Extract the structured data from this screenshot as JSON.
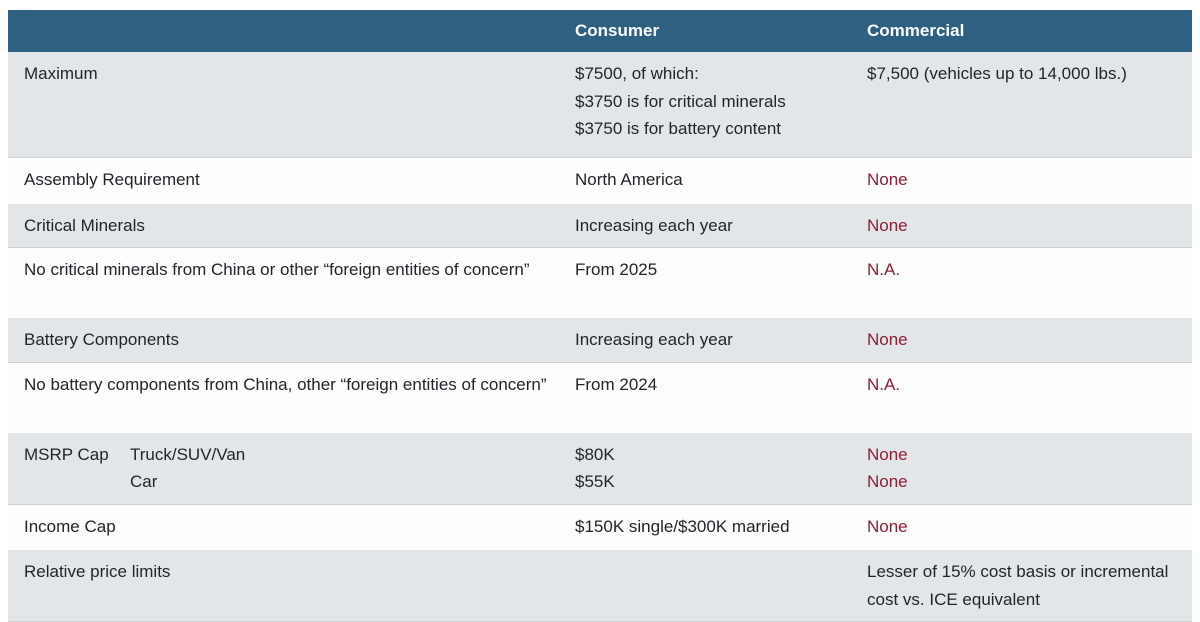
{
  "colors": {
    "header_bg": "#2e6181",
    "header_text": "#ffffff",
    "stripe_bg": "#e3e6e9",
    "accent_red": "#8b1e34",
    "body_text": "#212529"
  },
  "table": {
    "header": {
      "label": "",
      "consumer": "Consumer",
      "commercial": "Commercial"
    },
    "rows": [
      {
        "label": "Maximum",
        "consumer": [
          "$7500, of which:",
          "$3750 is for critical minerals",
          "$3750 is for battery content"
        ],
        "commercial": [
          "$7,500 (vehicles up to 14,000 lbs.)"
        ],
        "commercial_red": false,
        "shaded": true
      },
      {
        "label": "Assembly Requirement",
        "consumer": [
          "North America"
        ],
        "commercial": [
          "None"
        ],
        "commercial_red": true,
        "shaded": false
      },
      {
        "label": "Critical Minerals",
        "consumer": [
          "Increasing each year"
        ],
        "commercial": [
          "None"
        ],
        "commercial_red": true,
        "shaded": true
      },
      {
        "label": "No critical minerals from China or other “foreign entities of concern”",
        "consumer": [
          "From 2025"
        ],
        "commercial": [
          "N.A."
        ],
        "commercial_red": true,
        "shaded": false
      },
      {
        "label": "Battery Components",
        "consumer": [
          "Increasing each year"
        ],
        "commercial": [
          "None"
        ],
        "commercial_red": true,
        "shaded": true
      },
      {
        "label": "No battery components from China, other “foreign entities of concern”",
        "consumer": [
          "From 2024"
        ],
        "commercial": [
          "N.A."
        ],
        "commercial_red": true,
        "shaded": false
      },
      {
        "label": "MSRP Cap",
        "sublabels": [
          "Truck/SUV/Van",
          "Car"
        ],
        "consumer": [
          "$80K",
          "$55K"
        ],
        "commercial": [
          "None",
          "None"
        ],
        "commercial_red": true,
        "shaded": true
      },
      {
        "label": "Income Cap",
        "consumer": [
          "$150K single/$300K married"
        ],
        "commercial": [
          "None"
        ],
        "commercial_red": true,
        "shaded": false
      },
      {
        "label": "Relative price limits",
        "consumer": [],
        "commercial": [
          "Lesser of 15% cost basis or incremental cost vs. ICE equivalent"
        ],
        "commercial_red": false,
        "shaded": true
      }
    ]
  }
}
